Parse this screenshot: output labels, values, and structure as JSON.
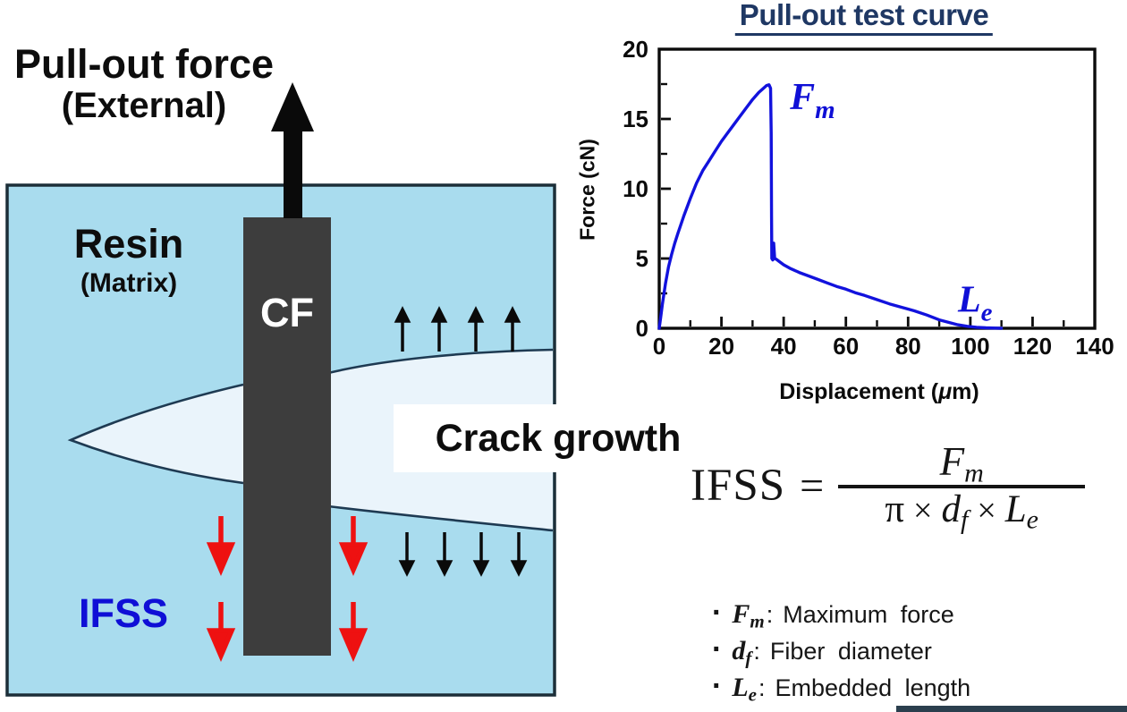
{
  "colors": {
    "resin_fill": "#a9dcee",
    "crack_fill": "#eaf4fb",
    "fiber_fill": "#3d3d3d",
    "curve_blue": "#1212dd",
    "label_blue": "#0f0fd6",
    "title_navy": "#1f3864",
    "arrow_red": "#ee1111",
    "arrow_black": "#0a0a0a"
  },
  "diagram": {
    "force_label_line1": "Pull-out force",
    "force_label_line2": "(External)",
    "resin_label": "Resin",
    "matrix_label": "(Matrix)",
    "fiber_label": "CF",
    "ifss_label": "IFSS",
    "crack_label": "Crack growth"
  },
  "chart": {
    "title": "Pull-out test curve",
    "ylabel": "Force (cN)",
    "xlabel_pre": "Displacement (",
    "xlabel_mu": "μ",
    "xlabel_post": "m)"
  },
  "chart_data": {
    "type": "line",
    "title": "Pull-out test curve",
    "xlabel": "Displacement (μm)",
    "ylabel": "Force (cN)",
    "xlim": [
      0,
      140
    ],
    "ylim": [
      0,
      20
    ],
    "x_ticks": [
      0,
      20,
      40,
      60,
      80,
      100,
      120,
      140
    ],
    "y_ticks": [
      0,
      5,
      10,
      15,
      20
    ],
    "x_minor_step": 10,
    "y_minor_step": 2.5,
    "grid": false,
    "legend_position": "none",
    "series": [
      {
        "name": "pull-out force vs displacement",
        "color": "#1212dd",
        "points": [
          [
            0,
            0
          ],
          [
            0.5,
            0.8
          ],
          [
            1,
            1.7
          ],
          [
            2,
            3.2
          ],
          [
            3,
            4.4
          ],
          [
            4,
            5.3
          ],
          [
            5,
            6.1
          ],
          [
            6,
            6.8
          ],
          [
            8,
            8.1
          ],
          [
            10,
            9.3
          ],
          [
            12,
            10.4
          ],
          [
            14,
            11.3
          ],
          [
            16,
            12.0
          ],
          [
            18,
            12.7
          ],
          [
            20,
            13.4
          ],
          [
            22,
            14.0
          ],
          [
            24,
            14.6
          ],
          [
            26,
            15.2
          ],
          [
            28,
            15.8
          ],
          [
            30,
            16.4
          ],
          [
            32,
            16.9
          ],
          [
            33.5,
            17.2
          ],
          [
            34.5,
            17.4
          ],
          [
            35.3,
            17.45
          ],
          [
            35.8,
            17.2
          ],
          [
            36,
            14
          ],
          [
            36.1,
            8
          ],
          [
            36.2,
            5.0
          ],
          [
            36.5,
            4.9
          ],
          [
            36.8,
            6.1
          ],
          [
            37.1,
            5.0
          ],
          [
            37.6,
            4.95
          ],
          [
            38.5,
            4.8
          ],
          [
            40,
            4.55
          ],
          [
            42,
            4.3
          ],
          [
            45,
            4.0
          ],
          [
            48,
            3.75
          ],
          [
            51,
            3.5
          ],
          [
            54,
            3.25
          ],
          [
            57,
            3.0
          ],
          [
            60,
            2.8
          ],
          [
            63,
            2.55
          ],
          [
            66,
            2.35
          ],
          [
            70,
            2.05
          ],
          [
            74,
            1.75
          ],
          [
            78,
            1.5
          ],
          [
            82,
            1.25
          ],
          [
            86,
            0.95
          ],
          [
            90,
            0.6
          ],
          [
            93,
            0.42
          ],
          [
            96,
            0.25
          ],
          [
            99,
            0.14
          ],
          [
            102,
            0.07
          ],
          [
            105,
            0.03
          ],
          [
            108,
            0.01
          ],
          [
            110,
            0
          ]
        ]
      }
    ],
    "annotations": [
      {
        "base": "F",
        "sub": "m",
        "x": 42,
        "y": 15.7
      },
      {
        "base": "L",
        "sub": "e",
        "x": 96,
        "y": 1.2
      }
    ]
  },
  "formula": {
    "lhs": "IFSS",
    "eq": "=",
    "num_base": "F",
    "num_sub": "m",
    "den_pi": "π",
    "den_times1": "×",
    "den_d": "d",
    "den_d_sub": "f",
    "den_times2": "×",
    "den_L": "L",
    "den_L_sub": "e"
  },
  "legend": {
    "items": [
      {
        "bullet": "·",
        "base": "F",
        "sub": "m",
        "colon": ":",
        "text": "Maximum force"
      },
      {
        "bullet": "·",
        "base": "d",
        "sub": "f",
        "colon": ":",
        "text": "Fiber diameter"
      },
      {
        "bullet": "·",
        "base": "L",
        "sub": "e",
        "colon": ":",
        "text": "Embedded length"
      }
    ]
  }
}
